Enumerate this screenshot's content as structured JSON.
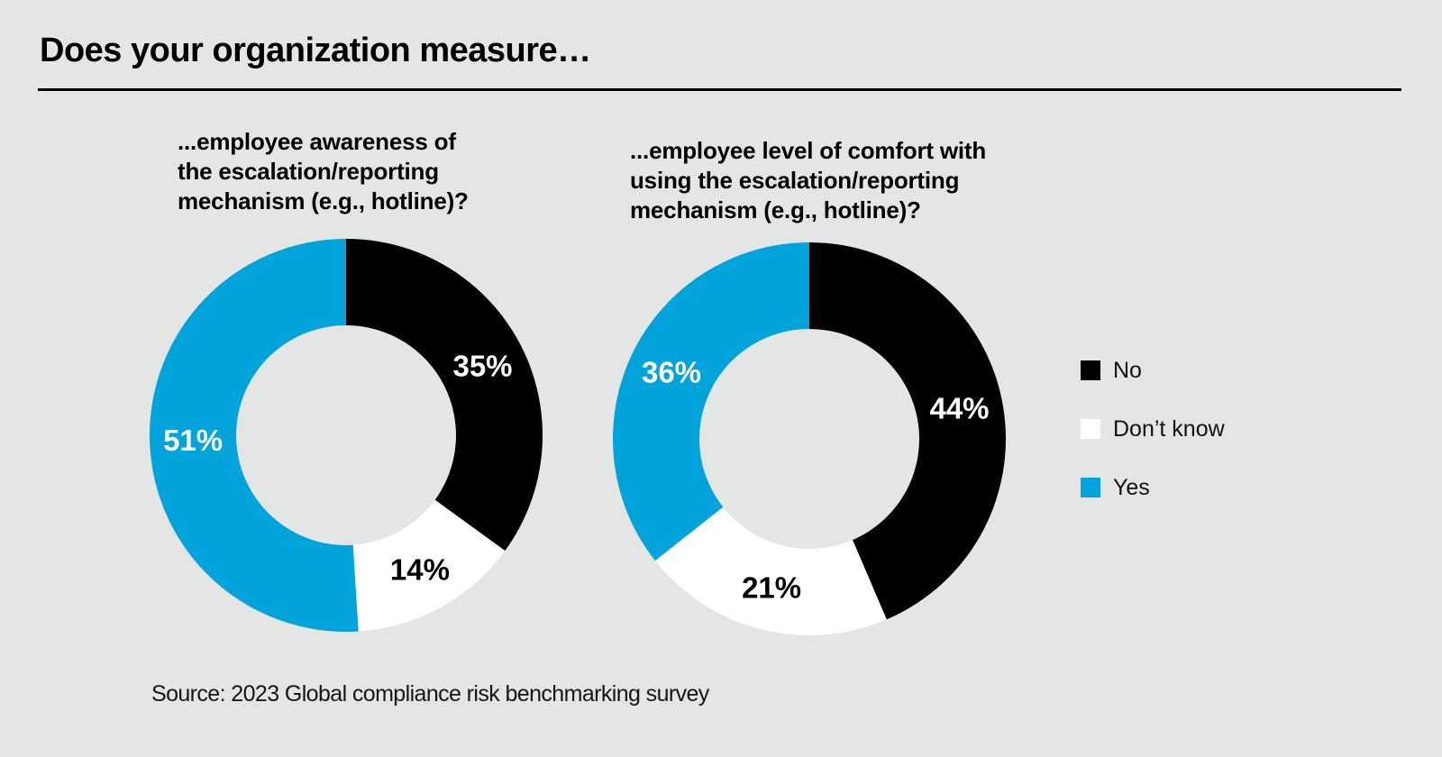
{
  "page": {
    "title": "Does your organization measure…",
    "source": "Source: 2023 Global compliance risk benchmarking survey",
    "background_color": "#e4e5e5",
    "text_color": "#000000"
  },
  "legend": {
    "position": "right",
    "items": [
      {
        "label": "No",
        "color": "#000000"
      },
      {
        "label": "Don’t know",
        "color": "#ffffff"
      },
      {
        "label": "Yes",
        "color": "#00a3da"
      }
    ]
  },
  "chart_data": [
    {
      "type": "pie",
      "variant": "donut",
      "title": "...employee awareness of\nthe escalation/reporting\nmechanism (e.g., hotline)?",
      "categories": [
        "No",
        "Don’t know",
        "Yes"
      ],
      "values": [
        35,
        14,
        51
      ],
      "unit": "%",
      "colors": [
        "#000000",
        "#ffffff",
        "#00a3da"
      ],
      "value_label_colors": [
        "#ffffff",
        "#000000",
        "#ffffff"
      ],
      "start_angle_deg": 0,
      "direction": "clockwise",
      "hole_fill": "background"
    },
    {
      "type": "pie",
      "variant": "donut",
      "title": "...employee level of comfort with\nusing the escalation/reporting\nmechanism (e.g., hotline)?",
      "categories": [
        "No",
        "Don’t know",
        "Yes"
      ],
      "values": [
        44,
        21,
        36
      ],
      "unit": "%",
      "colors": [
        "#000000",
        "#ffffff",
        "#00a3da"
      ],
      "value_label_colors": [
        "#ffffff",
        "#000000",
        "#ffffff"
      ],
      "start_angle_deg": 0,
      "direction": "clockwise",
      "hole_fill": "background"
    }
  ]
}
